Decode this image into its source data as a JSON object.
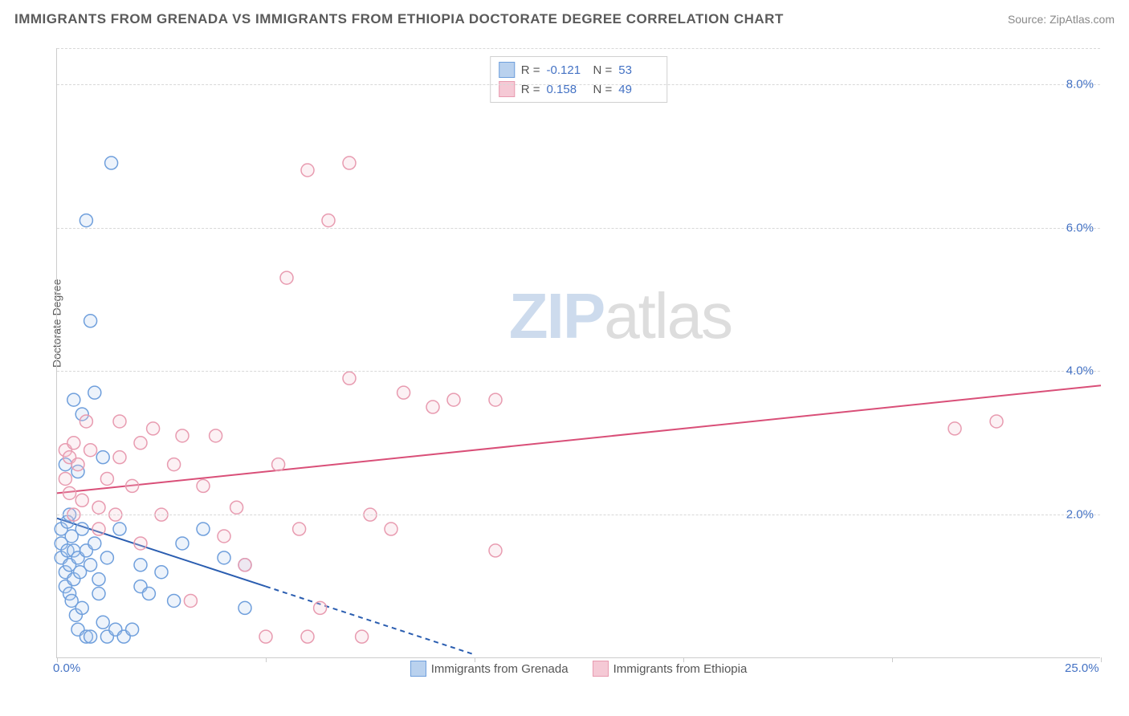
{
  "title": "IMMIGRANTS FROM GRENADA VS IMMIGRANTS FROM ETHIOPIA DOCTORATE DEGREE CORRELATION CHART",
  "source": "Source: ZipAtlas.com",
  "y_axis_label": "Doctorate Degree",
  "watermark_a": "ZIP",
  "watermark_b": "atlas",
  "chart": {
    "type": "scatter",
    "background_color": "#ffffff",
    "grid_color": "#d8d8d8",
    "axis_color": "#cccccc",
    "tick_label_color": "#4472c4",
    "xlim": [
      0,
      25
    ],
    "ylim": [
      0,
      8.5
    ],
    "x_ticks": [
      0,
      5,
      10,
      15,
      20,
      25
    ],
    "x_tick_labels": [
      "0.0%",
      "",
      "",
      "",
      "",
      "25.0%"
    ],
    "y_ticks": [
      2,
      4,
      6,
      8
    ],
    "y_tick_labels": [
      "2.0%",
      "4.0%",
      "6.0%",
      "8.0%"
    ],
    "marker_radius": 8,
    "marker_stroke_width": 1.5,
    "marker_fill_opacity": 0.25,
    "series": [
      {
        "name": "Immigrants from Grenada",
        "color": "#6f9fdc",
        "fill": "#b9d1ee",
        "R": "-0.121",
        "N": "53",
        "trend": {
          "x1": 0,
          "y1": 1.95,
          "x2": 10,
          "y2": 0.05,
          "solid_until_x": 5.0,
          "line_color": "#2a5db0",
          "line_width": 2
        },
        "points": [
          [
            0.1,
            1.8
          ],
          [
            0.1,
            1.6
          ],
          [
            0.1,
            1.4
          ],
          [
            0.2,
            2.7
          ],
          [
            0.2,
            1.2
          ],
          [
            0.2,
            1.0
          ],
          [
            0.25,
            1.9
          ],
          [
            0.25,
            1.5
          ],
          [
            0.3,
            2.0
          ],
          [
            0.3,
            0.9
          ],
          [
            0.3,
            1.3
          ],
          [
            0.35,
            1.7
          ],
          [
            0.35,
            0.8
          ],
          [
            0.4,
            3.6
          ],
          [
            0.4,
            1.5
          ],
          [
            0.4,
            1.1
          ],
          [
            0.45,
            0.6
          ],
          [
            0.5,
            2.6
          ],
          [
            0.5,
            1.4
          ],
          [
            0.5,
            0.4
          ],
          [
            0.55,
            1.2
          ],
          [
            0.6,
            3.4
          ],
          [
            0.6,
            1.8
          ],
          [
            0.6,
            0.7
          ],
          [
            0.7,
            1.5
          ],
          [
            0.7,
            0.3
          ],
          [
            0.7,
            6.1
          ],
          [
            0.8,
            1.3
          ],
          [
            0.8,
            4.7
          ],
          [
            0.8,
            0.3
          ],
          [
            0.9,
            3.7
          ],
          [
            0.9,
            1.6
          ],
          [
            1.0,
            1.1
          ],
          [
            1.0,
            0.9
          ],
          [
            1.1,
            2.8
          ],
          [
            1.1,
            0.5
          ],
          [
            1.2,
            1.4
          ],
          [
            1.2,
            0.3
          ],
          [
            1.3,
            6.9
          ],
          [
            1.4,
            0.4
          ],
          [
            1.5,
            1.8
          ],
          [
            1.6,
            0.3
          ],
          [
            1.8,
            0.4
          ],
          [
            2.0,
            1.3
          ],
          [
            2.0,
            1.0
          ],
          [
            2.2,
            0.9
          ],
          [
            2.5,
            1.2
          ],
          [
            2.8,
            0.8
          ],
          [
            3.0,
            1.6
          ],
          [
            3.5,
            1.8
          ],
          [
            4.0,
            1.4
          ],
          [
            4.5,
            1.3
          ],
          [
            4.5,
            0.7
          ]
        ]
      },
      {
        "name": "Immigrants from Ethiopia",
        "color": "#e89bb0",
        "fill": "#f5c9d5",
        "R": "0.158",
        "N": "49",
        "trend": {
          "x1": 0,
          "y1": 2.3,
          "x2": 25,
          "y2": 3.8,
          "solid_until_x": 25,
          "line_color": "#d94f78",
          "line_width": 2
        },
        "points": [
          [
            0.2,
            2.9
          ],
          [
            0.2,
            2.5
          ],
          [
            0.3,
            2.8
          ],
          [
            0.3,
            2.3
          ],
          [
            0.4,
            3.0
          ],
          [
            0.4,
            2.0
          ],
          [
            0.5,
            2.7
          ],
          [
            0.6,
            2.2
          ],
          [
            0.7,
            3.3
          ],
          [
            0.8,
            2.9
          ],
          [
            1.0,
            2.1
          ],
          [
            1.0,
            1.8
          ],
          [
            1.2,
            2.5
          ],
          [
            1.4,
            2.0
          ],
          [
            1.5,
            3.3
          ],
          [
            1.5,
            2.8
          ],
          [
            1.8,
            2.4
          ],
          [
            2.0,
            3.0
          ],
          [
            2.0,
            1.6
          ],
          [
            2.3,
            3.2
          ],
          [
            2.5,
            2.0
          ],
          [
            2.8,
            2.7
          ],
          [
            3.0,
            3.1
          ],
          [
            3.2,
            0.8
          ],
          [
            3.5,
            2.4
          ],
          [
            3.8,
            3.1
          ],
          [
            4.0,
            1.7
          ],
          [
            4.3,
            2.1
          ],
          [
            4.5,
            1.3
          ],
          [
            5.0,
            0.3
          ],
          [
            5.3,
            2.7
          ],
          [
            5.5,
            5.3
          ],
          [
            5.8,
            1.8
          ],
          [
            6.0,
            0.3
          ],
          [
            6.0,
            6.8
          ],
          [
            6.3,
            0.7
          ],
          [
            6.5,
            6.1
          ],
          [
            7.0,
            3.9
          ],
          [
            7.0,
            6.9
          ],
          [
            7.3,
            0.3
          ],
          [
            7.5,
            2.0
          ],
          [
            8.0,
            1.8
          ],
          [
            8.3,
            3.7
          ],
          [
            9.0,
            3.5
          ],
          [
            9.5,
            3.6
          ],
          [
            10.5,
            1.5
          ],
          [
            10.5,
            3.6
          ],
          [
            21.5,
            3.2
          ],
          [
            22.5,
            3.3
          ]
        ]
      }
    ]
  },
  "stats_box_labels": {
    "R": "R =",
    "N": "N ="
  },
  "bottom_legend": [
    {
      "label": "Immigrants from Grenada",
      "color": "#6f9fdc",
      "fill": "#b9d1ee"
    },
    {
      "label": "Immigrants from Ethiopia",
      "color": "#e89bb0",
      "fill": "#f5c9d5"
    }
  ]
}
